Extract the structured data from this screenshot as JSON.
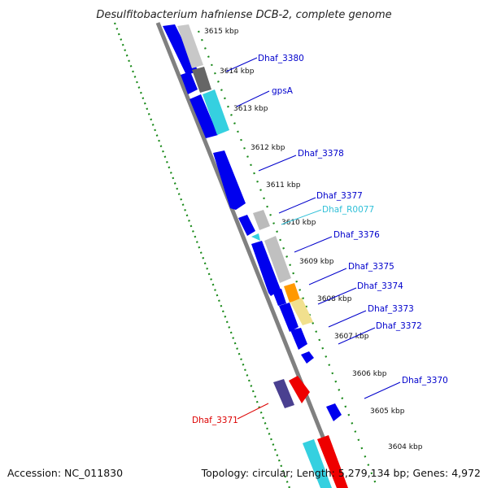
{
  "title": "Desulfitobacterium hafniense DCB-2, complete genome",
  "footer": {
    "accession": "Accession: NC_011830",
    "summary": "Topology: circular; Length: 5,279,134 bp; Genes: 4,972"
  },
  "colors": {
    "backbone": "#808080",
    "gc_dots": "#1a8a1a",
    "cds": "#0000ee",
    "trna": "#35d0e0",
    "label_blue": "#0000cc",
    "label_cyan": "#30c0d8",
    "label_red": "#dd0000"
  },
  "ticks": [
    {
      "label": "3615 kbp",
      "kbp": 3615
    },
    {
      "label": "3614 kbp",
      "kbp": 3614
    },
    {
      "label": "3613 kbp",
      "kbp": 3613
    },
    {
      "label": "3612 kbp",
      "kbp": 3612
    },
    {
      "label": "3611 kbp",
      "kbp": 3611
    },
    {
      "label": "3610 kbp",
      "kbp": 3610
    },
    {
      "label": "3609 kbp",
      "kbp": 3609
    },
    {
      "label": "3608 kbp",
      "kbp": 3608
    },
    {
      "label": "3607 kbp",
      "kbp": 3607
    },
    {
      "label": "3606 kbp",
      "kbp": 3606
    },
    {
      "label": "3605 kbp",
      "kbp": 3605
    },
    {
      "label": "3604 kbp",
      "kbp": 3604
    }
  ],
  "gene_labels": [
    {
      "name": "Dhaf_3380",
      "color": "label_blue"
    },
    {
      "name": "gpsA",
      "color": "label_blue"
    },
    {
      "name": "Dhaf_3378",
      "color": "label_blue"
    },
    {
      "name": "Dhaf_3377",
      "color": "label_blue"
    },
    {
      "name": "Dhaf_R0077",
      "color": "label_cyan"
    },
    {
      "name": "Dhaf_3376",
      "color": "label_blue"
    },
    {
      "name": "Dhaf_3375",
      "color": "label_blue"
    },
    {
      "name": "Dhaf_3374",
      "color": "label_blue"
    },
    {
      "name": "Dhaf_3373",
      "color": "label_blue"
    },
    {
      "name": "Dhaf_3372",
      "color": "label_blue"
    },
    {
      "name": "Dhaf_3370",
      "color": "label_blue"
    },
    {
      "name": "Dhaf_3371",
      "color": "label_red"
    }
  ]
}
